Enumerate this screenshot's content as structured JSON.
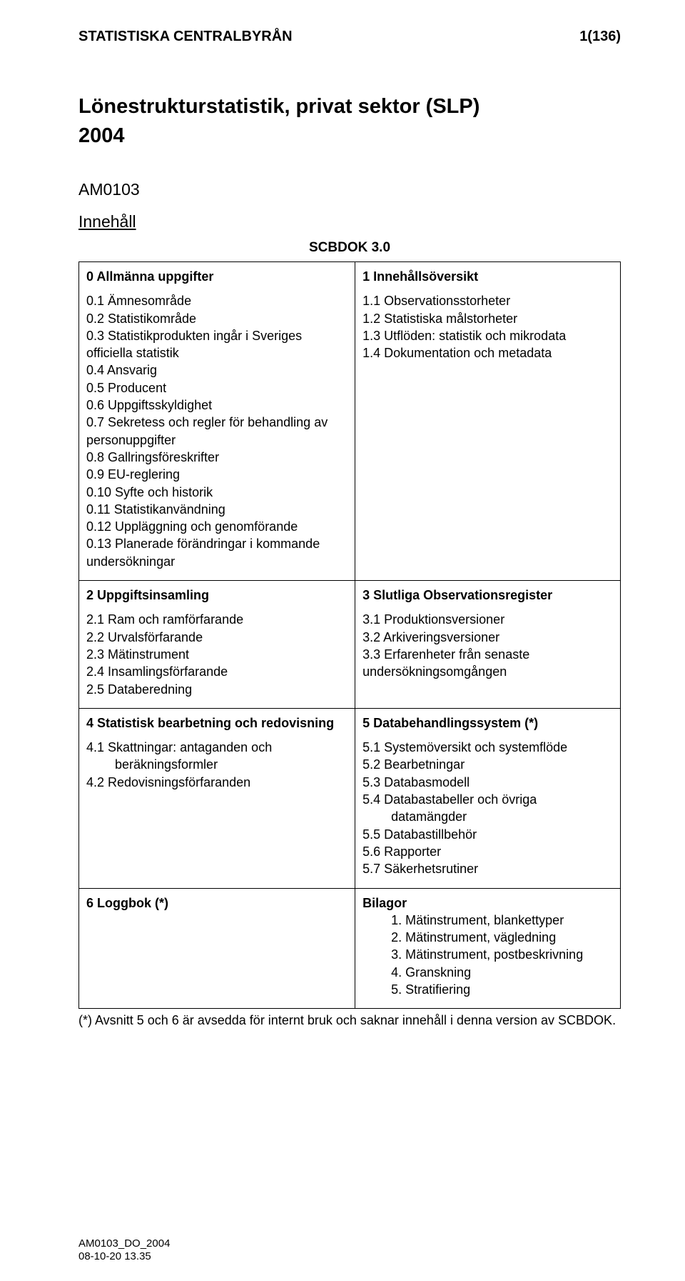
{
  "header": {
    "org": "STATISTISKA CENTRALBYRÅN",
    "pagenum": "1(136)"
  },
  "title": {
    "line1": "Lönestrukturstatistik, privat sektor (SLP)",
    "year": "2004"
  },
  "product_code": "AM0103",
  "section_label": "Innehåll",
  "scbdok": "SCBDOK 3.0",
  "toc": {
    "r0": {
      "left_heading": "0  Allmänna uppgifter",
      "left_items": [
        "0.1  Ämnesområde",
        "0.2  Statistikområde",
        "0.3  Statistikprodukten ingår i Sveriges officiella statistik",
        "0.4  Ansvarig",
        "0.5  Producent",
        "0.6  Uppgiftsskyldighet",
        "0.7  Sekretess och regler för behandling av personuppgifter",
        "0.8  Gallringsföreskrifter",
        "0.9  EU-reglering",
        "0.10  Syfte och historik",
        "0.11  Statistikanvändning",
        "0.12  Uppläggning och genomförande",
        "0.13  Planerade förändringar i kommande undersökningar"
      ],
      "right_heading": "1  Innehållsöversikt",
      "right_items": [
        "1.1  Observationsstorheter",
        "1.2  Statistiska målstorheter",
        "1.3  Utflöden: statistik och mikrodata",
        "1.4  Dokumentation och metadata"
      ]
    },
    "r1": {
      "left_heading": "2  Uppgiftsinsamling",
      "left_items": [
        "2.1  Ram och ramförfarande",
        "2.2  Urvalsförfarande",
        "2.3  Mätinstrument",
        "2.4  Insamlingsförfarande",
        "2.5  Databeredning"
      ],
      "right_heading": "3  Slutliga Observationsregister",
      "right_items": [
        "3.1  Produktionsversioner",
        "3.2  Arkiveringsversioner",
        "3.3  Erfarenheter från senaste undersökningsomgången"
      ]
    },
    "r2": {
      "left_heading": "4  Statistisk bearbetning och redovisning",
      "left_items": [
        "4.1  Skattningar: antaganden och",
        "beräkningsformler",
        "4.2  Redovisningsförfaranden"
      ],
      "right_heading": "5  Databehandlingssystem (*)",
      "right_items": [
        "5.1  Systemöversikt och systemflöde",
        "5.2  Bearbetningar",
        "5.3  Databasmodell",
        "5.4  Databastabeller och övriga",
        "datamängder",
        "5.5  Databastillbehör",
        "5.6  Rapporter",
        "5.7  Säkerhetsrutiner"
      ]
    },
    "r3": {
      "left_heading": "6  Loggbok (*)",
      "right_heading": "Bilagor",
      "bilagor": [
        "1.   Mätinstrument, blankettyper",
        "2.   Mätinstrument, vägledning",
        "3.   Mätinstrument, postbeskrivning",
        "4.   Granskning",
        "5.   Stratifiering"
      ]
    }
  },
  "footnote": "(*) Avsnitt 5 och 6 är avsedda för internt bruk och saknar innehåll i denna version av SCBDOK.",
  "footer": {
    "line1": "AM0103_DO_2004",
    "line2": "08-10-20 13.35"
  }
}
